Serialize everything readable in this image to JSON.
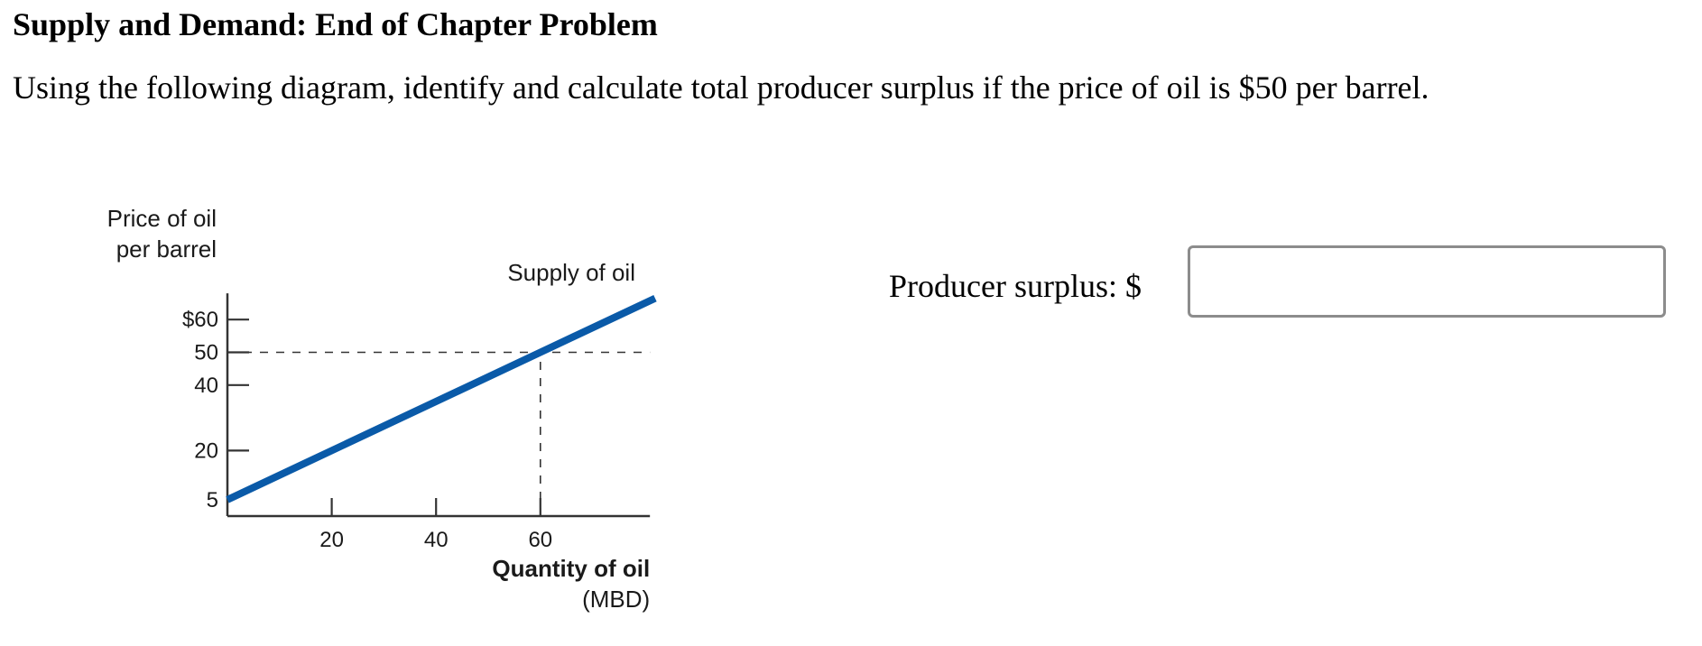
{
  "header": {
    "title": "Supply and Demand: End of Chapter Problem",
    "question": "Using the following diagram, identify and calculate total producer surplus if the price of oil is $50 per barrel."
  },
  "answer": {
    "label": "Producer surplus: $",
    "value": "",
    "placeholder": ""
  },
  "chart_data": {
    "type": "line",
    "ylabel_lines": [
      "Price of oil",
      "per barrel"
    ],
    "xlabel_lines": [
      "Quantity of oil",
      "(MBD)"
    ],
    "y_ticks": [
      {
        "value": 60,
        "label": "$60"
      },
      {
        "value": 50,
        "label": "50"
      },
      {
        "value": 40,
        "label": "40"
      },
      {
        "value": 20,
        "label": "20"
      },
      {
        "value": 5,
        "label": "5"
      }
    ],
    "x_ticks": [
      {
        "value": 20,
        "label": "20"
      },
      {
        "value": 40,
        "label": "40"
      },
      {
        "value": 60,
        "label": "60"
      }
    ],
    "xlim": [
      0,
      81
    ],
    "ylim": [
      0,
      68
    ],
    "series": [
      {
        "name": "Supply of oil",
        "points": [
          [
            0,
            5
          ],
          [
            60,
            50
          ],
          [
            82,
            66.5
          ]
        ],
        "color": "#0a5aa8"
      }
    ],
    "reference_lines": [
      {
        "type": "horizontal",
        "y": 50,
        "x_from": 0,
        "x_to": 81
      },
      {
        "type": "vertical",
        "x": 60,
        "y_from": 0,
        "y_to": 50
      }
    ],
    "grid": false,
    "legend": "none"
  }
}
